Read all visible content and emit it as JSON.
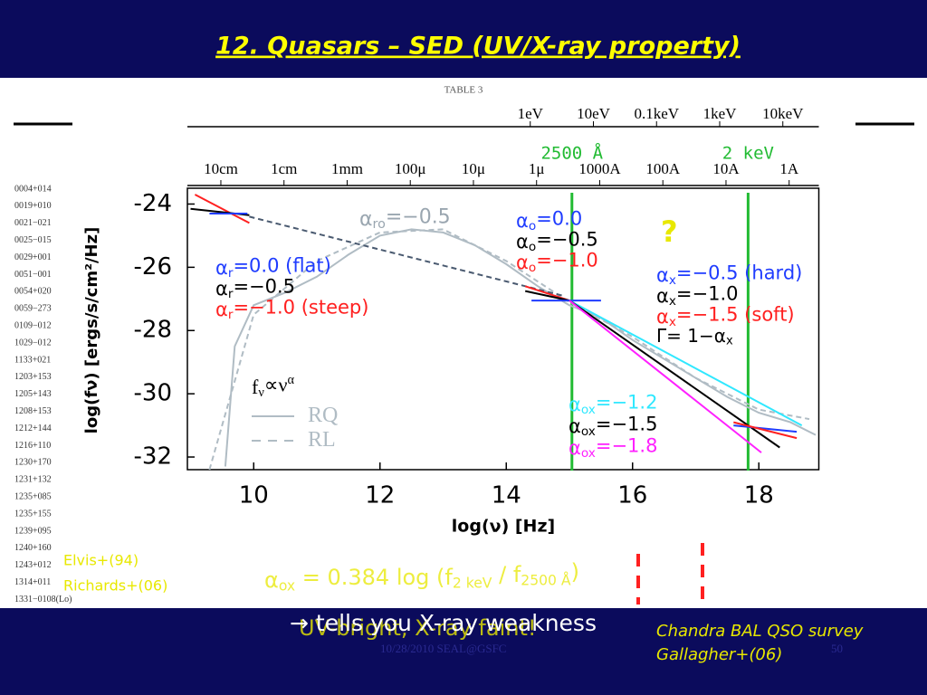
{
  "slide": {
    "title": "12. Quasars – SED (UV/X-ray property)",
    "table_title": "TABLE 3",
    "table_row_ids": [
      "0004+014",
      "0019+010",
      "0021−021",
      "0025−015",
      "0029+001",
      "0051−001",
      "0054+020",
      "0059−273",
      "0109−012",
      "1029−012",
      "1133+021",
      "1203+153",
      "1205+143",
      "1208+153",
      "1212+144",
      "1216+110",
      "1230+170",
      "1231+132",
      "1235+085",
      "1235+155",
      "1239+095",
      "1240+160",
      "1243+012",
      "1314+011",
      "1331−0108(Lo)"
    ],
    "refs": [
      "Elvis+(94)",
      "Richards+(06)"
    ],
    "formula": [
      {
        "t": "α"
      },
      {
        "sub": "ox"
      },
      {
        "t": " = 0.384 log (f"
      },
      {
        "sub": "2 keV"
      },
      {
        "t": " / f"
      },
      {
        "sub": "2500 Å"
      },
      {
        "t": ")"
      }
    ],
    "ghost_text": "UV-bright, X-ray faint!",
    "conclusion": "→ tells you X-ray weakness",
    "survey": [
      "Chandra BAL QSO survey",
      "Gallagher+(06)"
    ],
    "footer": "10/28/2010 SEAL@GSFC",
    "page": "50"
  },
  "chart_data": {
    "type": "line",
    "xlabel": "log(ν) [Hz]",
    "ylabel": "log(fν) [ergs/s/cm²/Hz]",
    "xlim": [
      8.95,
      18.95
    ],
    "ylim": [
      -32.4,
      -23.5
    ],
    "xticks": [
      10,
      12,
      14,
      16,
      18
    ],
    "yticks": [
      -24,
      -26,
      -28,
      -30,
      -32
    ],
    "energy_ticks": [
      {
        "value": 14.38,
        "label": "1eV"
      },
      {
        "value": 15.38,
        "label": "10eV"
      },
      {
        "value": 16.38,
        "label": "0.1keV"
      },
      {
        "value": 17.38,
        "label": "1keV"
      },
      {
        "value": 18.38,
        "label": "10keV"
      }
    ],
    "wavelength_ticks": [
      {
        "value": 9.48,
        "label": "10cm"
      },
      {
        "value": 10.48,
        "label": "1cm"
      },
      {
        "value": 11.48,
        "label": "1mm"
      },
      {
        "value": 12.48,
        "label": "100μ"
      },
      {
        "value": 13.48,
        "label": "10μ"
      },
      {
        "value": 14.48,
        "label": "1μ"
      },
      {
        "value": 15.48,
        "label": "1000A"
      },
      {
        "value": 16.48,
        "label": "100A"
      },
      {
        "value": 17.48,
        "label": "10A"
      },
      {
        "value": 18.48,
        "label": "1A"
      }
    ],
    "vlines": [
      {
        "x": 15.04,
        "label": "2500 Å",
        "color": "#22bb33"
      },
      {
        "x": 17.83,
        "label": "2 keV",
        "color": "#22bb33"
      }
    ],
    "series": [
      {
        "color": "#b0bcc4",
        "dash": false,
        "x": [
          9.55,
          9.7,
          10,
          10.5,
          11,
          11.5,
          12,
          12.5,
          13,
          13.5,
          14,
          14.5,
          15,
          15.5,
          16,
          16.5,
          17,
          17.5,
          18,
          18.5,
          18.9
        ],
        "values": [
          -32.3,
          -28.5,
          -27.2,
          -26.8,
          -26.3,
          -25.6,
          -25.0,
          -24.8,
          -24.9,
          -25.3,
          -25.9,
          -26.6,
          -27.2,
          -27.6,
          -28.3,
          -28.9,
          -29.5,
          -30.1,
          -30.6,
          -30.9,
          -31.3
        ]
      },
      {
        "color": "#b0bcc4",
        "dash": true,
        "x": [
          9.3,
          10,
          11,
          12,
          13,
          14,
          15,
          16,
          17,
          18,
          18.8
        ],
        "values": [
          -32.4,
          -27.5,
          -25.8,
          -24.9,
          -24.8,
          -25.8,
          -27.1,
          -28.2,
          -29.5,
          -30.5,
          -30.8
        ]
      },
      {
        "color": "#4a5a70",
        "dash": true,
        "x": [
          9.93,
          14.9
        ],
        "values": [
          -24.4,
          -26.9
        ]
      },
      {
        "color": "#ff2020",
        "dash": false,
        "x": [
          9.07,
          9.93
        ],
        "values": [
          -23.7,
          -24.6
        ]
      },
      {
        "color": "#000000",
        "dash": false,
        "x": [
          9.0,
          9.93
        ],
        "values": [
          -24.15,
          -24.35
        ]
      },
      {
        "color": "#1f3cff",
        "dash": false,
        "x": [
          9.3,
          9.9
        ],
        "values": [
          -24.3,
          -24.3
        ]
      },
      {
        "color": "#ff2020",
        "dash": false,
        "x": [
          14.3,
          15.0
        ],
        "values": [
          -26.6,
          -27.05
        ]
      },
      {
        "color": "#000000",
        "dash": false,
        "x": [
          14.3,
          15.0
        ],
        "values": [
          -26.75,
          -27.05
        ]
      },
      {
        "color": "#1f3cff",
        "dash": false,
        "x": [
          14.4,
          15.5
        ],
        "values": [
          -27.05,
          -27.05
        ]
      },
      {
        "color": "#30e8ff",
        "dash": false,
        "x": [
          15.0,
          18.68
        ],
        "values": [
          -27.05,
          -31.0
        ]
      },
      {
        "color": "#000000",
        "dash": false,
        "x": [
          15.0,
          18.33
        ],
        "values": [
          -27.05,
          -31.7
        ]
      },
      {
        "color": "#ff20ff",
        "dash": false,
        "x": [
          15.0,
          18.04
        ],
        "values": [
          -27.05,
          -31.86
        ]
      },
      {
        "color": "#1f3cff",
        "dash": false,
        "x": [
          17.6,
          18.6
        ],
        "values": [
          -31.0,
          -31.2
        ]
      },
      {
        "color": "#ff2020",
        "dash": false,
        "x": [
          17.6,
          18.6
        ],
        "values": [
          -30.9,
          -31.4
        ]
      }
    ],
    "annotations": [
      {
        "color": "#9aa6b0",
        "parts": [
          {
            "t": "α"
          },
          {
            "sub": "ro"
          },
          {
            "t": "=−0.5"
          }
        ]
      },
      {
        "color": "#1f3cff",
        "parts": [
          {
            "t": "α"
          },
          {
            "sub": "r"
          },
          {
            "t": "=0.0  (flat)"
          }
        ]
      },
      {
        "color": "#000000",
        "parts": [
          {
            "t": "α"
          },
          {
            "sub": "r"
          },
          {
            "t": "=−0.5"
          }
        ]
      },
      {
        "color": "#ff2020",
        "parts": [
          {
            "t": "α"
          },
          {
            "sub": "r"
          },
          {
            "t": "=−1.0  (steep)"
          }
        ]
      },
      {
        "color": "#1f3cff",
        "parts": [
          {
            "t": "α"
          },
          {
            "sub": "o"
          },
          {
            "t": "=0.0"
          }
        ]
      },
      {
        "color": "#000000",
        "parts": [
          {
            "t": "α"
          },
          {
            "sub": "o"
          },
          {
            "t": "=−0.5"
          }
        ]
      },
      {
        "color": "#ff2020",
        "parts": [
          {
            "t": "α"
          },
          {
            "sub": "o"
          },
          {
            "t": "=−1.0"
          }
        ]
      },
      {
        "color": "#1f3cff",
        "parts": [
          {
            "t": "α"
          },
          {
            "sub": "x"
          },
          {
            "t": "=−0.5  (hard)"
          }
        ]
      },
      {
        "color": "#000000",
        "parts": [
          {
            "t": "α"
          },
          {
            "sub": "x"
          },
          {
            "t": "=−1.0"
          }
        ]
      },
      {
        "color": "#ff2020",
        "parts": [
          {
            "t": "α"
          },
          {
            "sub": "x"
          },
          {
            "t": "=−1.5  (soft)"
          }
        ]
      },
      {
        "color": "#000000",
        "parts": [
          {
            "t": "Γ= 1−α"
          },
          {
            "sub": "x"
          }
        ]
      },
      {
        "color": "#30e8ff",
        "parts": [
          {
            "t": "α"
          },
          {
            "sub": "ox"
          },
          {
            "t": "=−1.2"
          }
        ]
      },
      {
        "color": "#000000",
        "parts": [
          {
            "t": "α"
          },
          {
            "sub": "ox"
          },
          {
            "t": "=−1.5"
          }
        ]
      },
      {
        "color": "#ff20ff",
        "parts": [
          {
            "t": "α"
          },
          {
            "sub": "ox"
          },
          {
            "t": "=−1.8"
          }
        ]
      },
      {
        "color": "#000000",
        "parts": [
          {
            "t": "f"
          },
          {
            "sub": "ν"
          },
          {
            "t": "∝ν"
          },
          {
            "sup": "α"
          }
        ]
      },
      {
        "color": "#b0bcc4",
        "parts": [
          {
            "t": "RQ"
          }
        ]
      },
      {
        "color": "#b0bcc4",
        "parts": [
          {
            "t": "RL"
          }
        ]
      },
      {
        "color": "#e8e800",
        "parts": [
          {
            "t": "?"
          }
        ]
      }
    ]
  }
}
